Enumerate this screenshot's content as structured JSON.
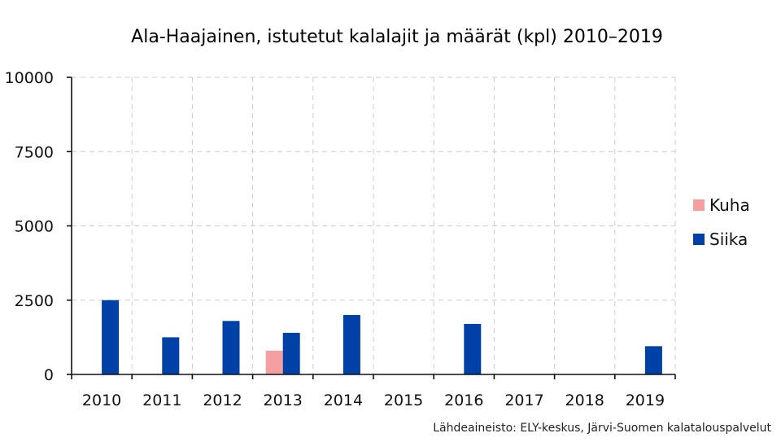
{
  "chart_data": {
    "type": "bar",
    "title": "Ala-Haajainen, istutetut kalalajit ja määrät (kpl) 2010–2019",
    "xlabel": "",
    "ylabel": "",
    "categories": [
      "2010",
      "2011",
      "2012",
      "2013",
      "2014",
      "2015",
      "2016",
      "2017",
      "2018",
      "2019"
    ],
    "series": [
      {
        "name": "Kuha",
        "color": "#f4a0a0",
        "values": [
          0,
          0,
          0,
          800,
          0,
          0,
          0,
          0,
          0,
          0
        ]
      },
      {
        "name": "Siika",
        "color": "#0041a8",
        "values": [
          2500,
          1250,
          1800,
          1400,
          2000,
          0,
          1700,
          0,
          0,
          950
        ]
      }
    ],
    "ylim": [
      0,
      10000
    ],
    "yticks": [
      "0",
      "2500",
      "5000",
      "7500",
      "10000"
    ],
    "grid": true,
    "legend_position": "right",
    "source": "Lähdeaineisto: ELY-keskus, Järvi-Suomen kalatalouspalvelut"
  }
}
